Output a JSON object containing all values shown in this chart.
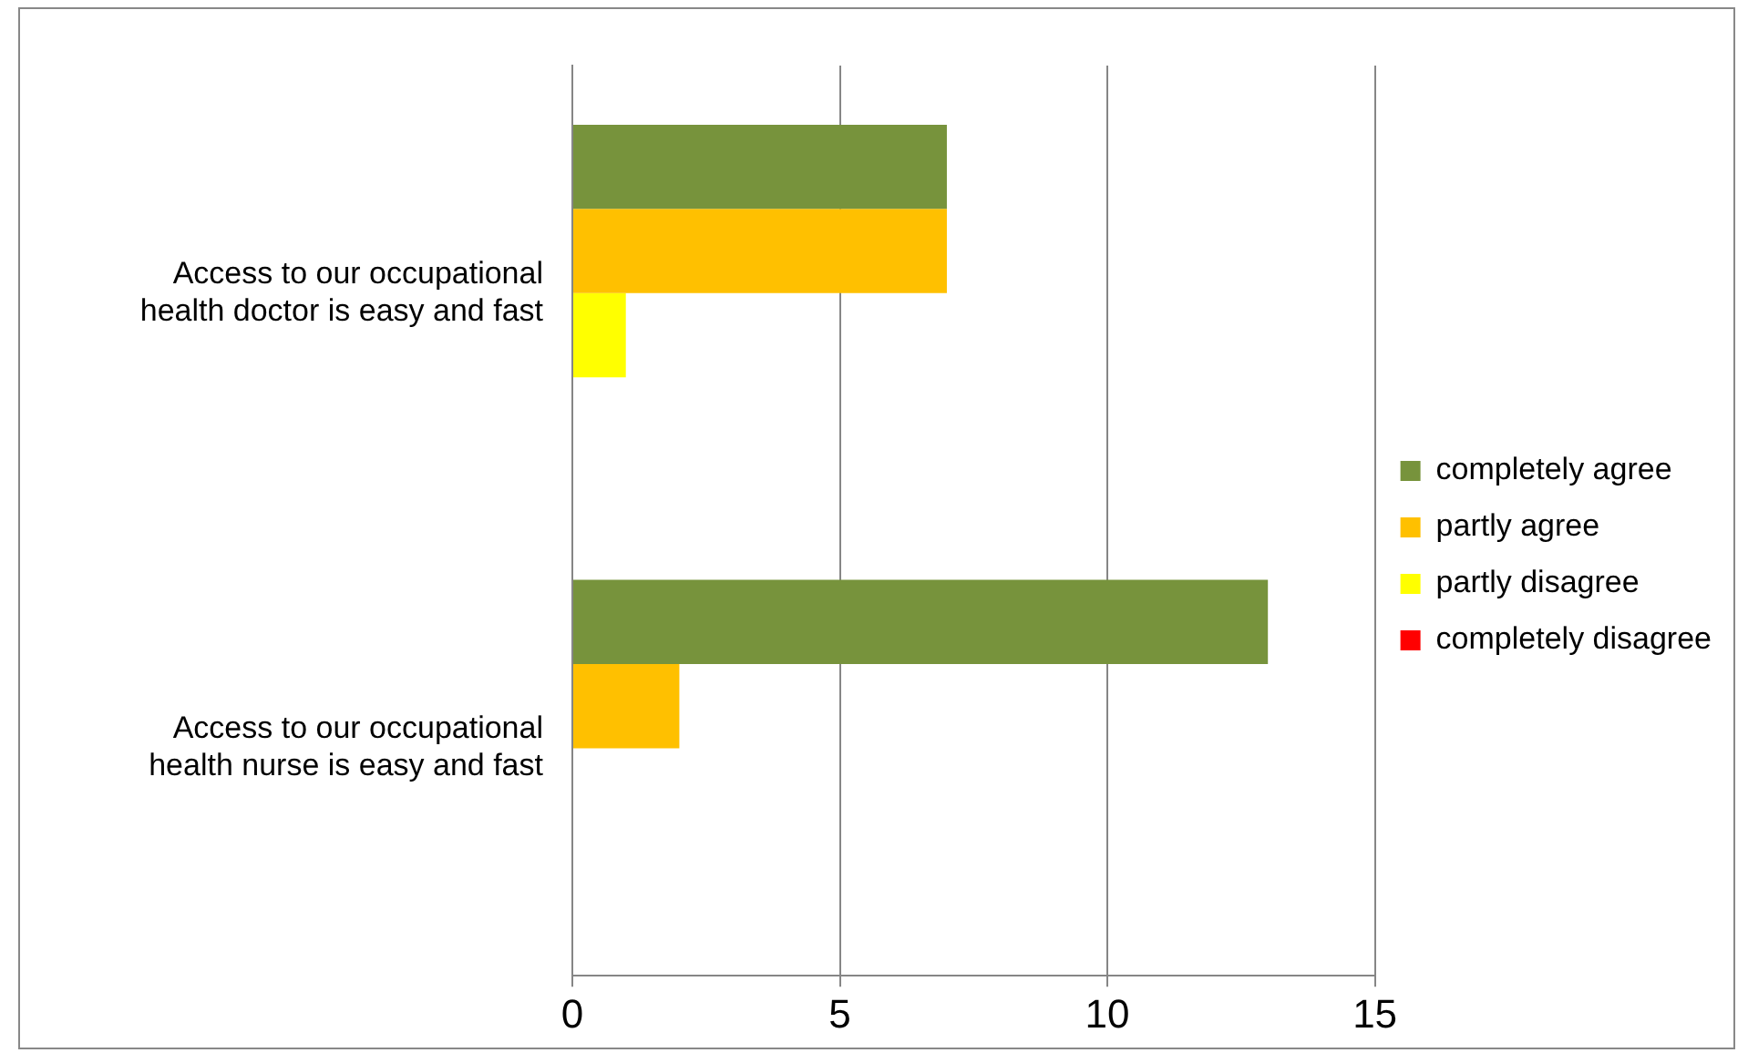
{
  "chart_data": {
    "type": "bar",
    "orientation": "horizontal",
    "categories": [
      "Access to our occupational health doctor is easy and fast",
      "Access to our occupational health nurse is easy and fast"
    ],
    "series": [
      {
        "name": "completely agree",
        "color": "#77933c",
        "values": [
          7,
          13
        ]
      },
      {
        "name": "partly agree",
        "color": "#ffc000",
        "values": [
          7,
          2
        ]
      },
      {
        "name": "partly disagree",
        "color": "#ffff00",
        "values": [
          1,
          0
        ]
      },
      {
        "name": "completely disagree",
        "color": "#ff0000",
        "values": [
          0,
          0
        ]
      }
    ],
    "xlim": [
      0,
      15
    ],
    "xticks": [
      0,
      5,
      10,
      15
    ],
    "grid": "x",
    "legend": "right"
  }
}
